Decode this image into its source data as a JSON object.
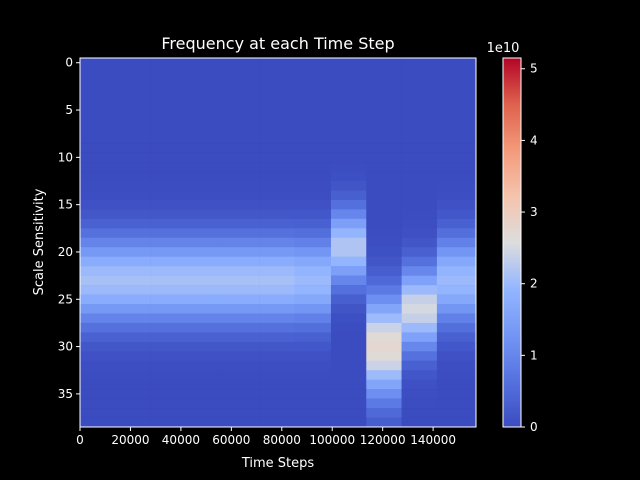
{
  "chart_data": {
    "type": "heatmap",
    "title": "Frequency at each Time Step",
    "xlabel": "Time Steps",
    "ylabel": "Scale Sensitivity",
    "xlim": [
      0,
      157000
    ],
    "ylim": [
      38.5,
      -0.5
    ],
    "xticks": [
      {
        "value": 0,
        "label": "0"
      },
      {
        "value": 20000,
        "label": "20000"
      },
      {
        "value": 40000,
        "label": "40000"
      },
      {
        "value": 60000,
        "label": "60000"
      },
      {
        "value": 80000,
        "label": "80000"
      },
      {
        "value": 100000,
        "label": "100000"
      },
      {
        "value": 120000,
        "label": "120000"
      },
      {
        "value": 140000,
        "label": "140000"
      }
    ],
    "yticks": [
      {
        "value": 0,
        "label": "0"
      },
      {
        "value": 5,
        "label": "5"
      },
      {
        "value": 10,
        "label": "10"
      },
      {
        "value": 15,
        "label": "15"
      },
      {
        "value": 20,
        "label": "20"
      },
      {
        "value": 25,
        "label": "25"
      },
      {
        "value": 30,
        "label": "30"
      },
      {
        "value": 35,
        "label": "35"
      }
    ],
    "colorbar": {
      "colormap": "coolwarm",
      "min": 0,
      "max": 51500000000.0,
      "offset_label": "1e10",
      "ticks": [
        {
          "value": 0,
          "label": "0"
        },
        {
          "value": 10000000000.0,
          "label": "1"
        },
        {
          "value": 20000000000.0,
          "label": "2"
        },
        {
          "value": 30000000000.0,
          "label": "3"
        },
        {
          "value": 40000000000.0,
          "label": "4"
        },
        {
          "value": 50000000000.0,
          "label": "5"
        }
      ]
    },
    "columns": [
      {
        "x_start": 0,
        "x_end": 14000,
        "peak_row": 23,
        "sigma": 3.2,
        "peak": 21000000000.0
      },
      {
        "x_start": 14000,
        "x_end": 28000,
        "peak_row": 23,
        "sigma": 3.2,
        "peak": 21000000000.0
      },
      {
        "x_start": 28000,
        "x_end": 42500,
        "peak_row": 23,
        "sigma": 3.2,
        "peak": 21000000000.0
      },
      {
        "x_start": 42500,
        "x_end": 56500,
        "peak_row": 23,
        "sigma": 3.2,
        "peak": 21000000000.0
      },
      {
        "x_start": 56500,
        "x_end": 71000,
        "peak_row": 23,
        "sigma": 3.2,
        "peak": 21000000000.0
      },
      {
        "x_start": 71000,
        "x_end": 85000,
        "peak_row": 23,
        "sigma": 3.2,
        "peak": 21000000000.0
      },
      {
        "x_start": 85000,
        "x_end": 99500,
        "peak_row": 23,
        "sigma": 3.2,
        "peak": 20000000000.0
      },
      {
        "x_start": 99500,
        "x_end": 113500,
        "peak_row": 19.5,
        "sigma": 2.8,
        "peak": 22000000000.0
      },
      {
        "x_start": 113500,
        "x_end": 127500,
        "peak_row": 30,
        "sigma": 3.8,
        "peak": 27500000000.0
      },
      {
        "x_start": 127500,
        "x_end": 141500,
        "peak_row": 26,
        "sigma": 3.0,
        "peak": 25000000000.0
      },
      {
        "x_start": 141500,
        "x_end": 157000,
        "peak_row": 23,
        "sigma": 3.2,
        "peak": 20000000000.0
      }
    ],
    "rows": 39
  }
}
